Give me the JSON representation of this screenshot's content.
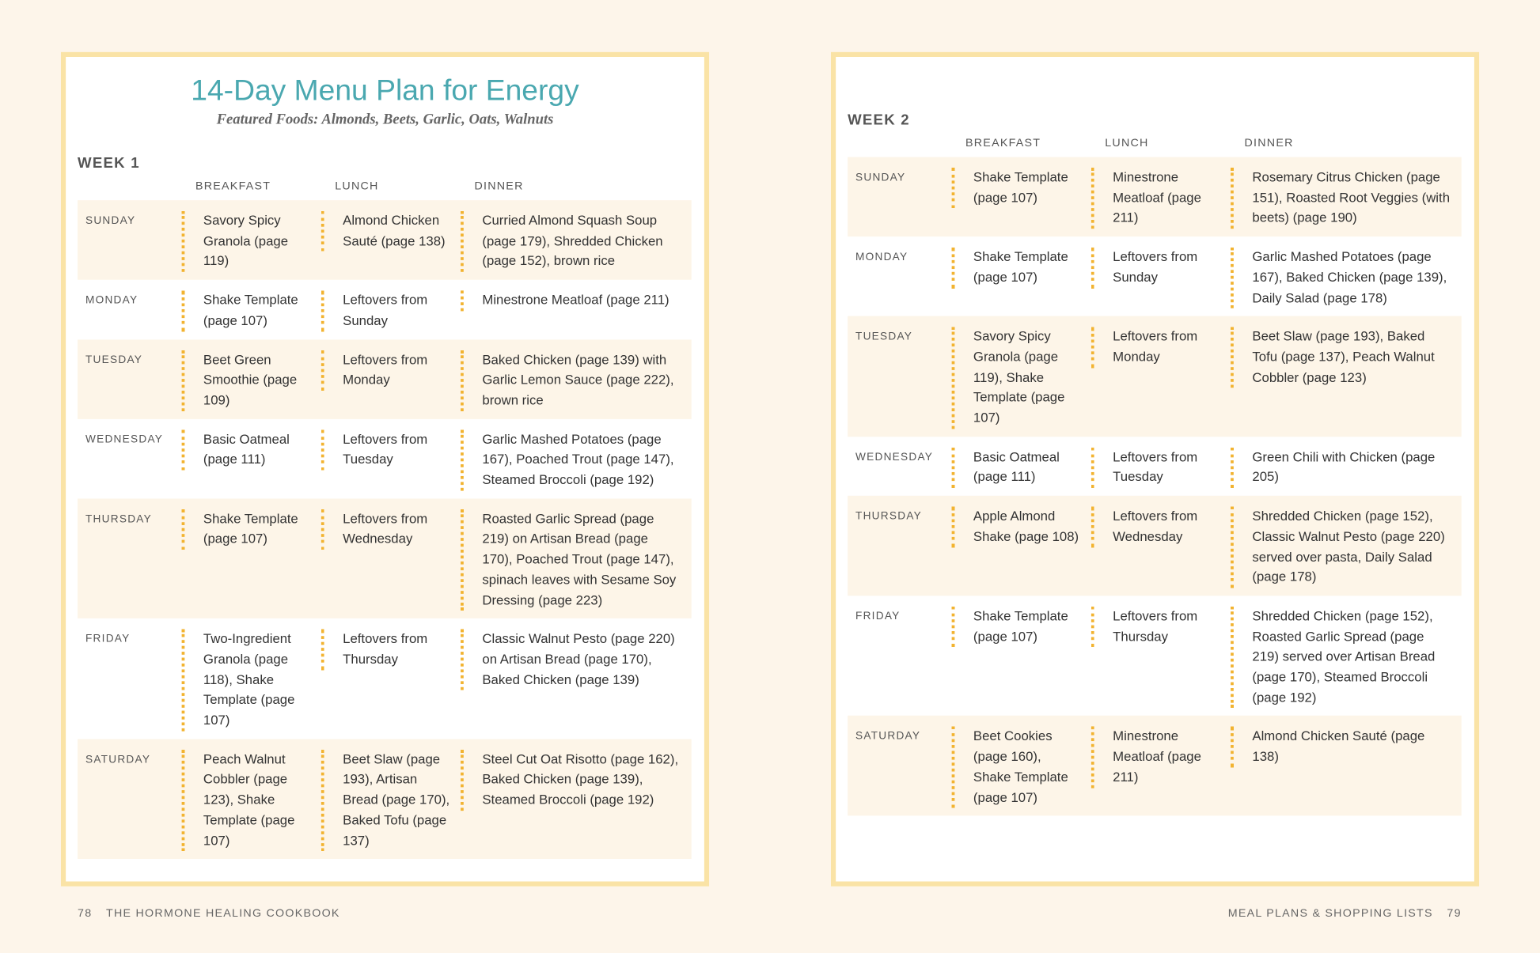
{
  "title": "14-Day Menu Plan for Energy",
  "subtitle": "Featured Foods: Almonds, Beets, Garlic, Oats, Walnuts",
  "weeks": [
    {
      "label": "WEEK 1",
      "columns": [
        "BREAKFAST",
        "LUNCH",
        "DINNER"
      ],
      "rows": [
        {
          "day": "SUNDAY",
          "cells": [
            "Savory Spicy Granola (page 119)",
            "Almond Chicken Sauté (page 138)",
            "Curried Almond Squash Soup (page 179), Shredded Chicken (page 152), brown rice"
          ]
        },
        {
          "day": "MONDAY",
          "cells": [
            "Shake Template (page 107)",
            "Leftovers from Sunday",
            "Minestrone Meatloaf (page 211)"
          ]
        },
        {
          "day": "TUESDAY",
          "cells": [
            "Beet Green Smoothie (page 109)",
            "Leftovers from Monday",
            "Baked Chicken (page 139) with Garlic Lemon Sauce (page 222), brown rice"
          ]
        },
        {
          "day": "WEDNESDAY",
          "cells": [
            "Basic Oatmeal (page 111)",
            "Leftovers from Tuesday",
            "Garlic Mashed Potatoes (page 167), Poached Trout (page 147), Steamed Broccoli (page 192)"
          ]
        },
        {
          "day": "THURSDAY",
          "cells": [
            "Shake Template (page 107)",
            "Leftovers from Wednesday",
            "Roasted Garlic Spread (page 219) on Artisan Bread (page 170), Poached Trout (page 147), spinach leaves with Sesame Soy Dressing (page 223)"
          ]
        },
        {
          "day": "FRIDAY",
          "cells": [
            "Two-Ingredient Granola (page 118), Shake Template (page 107)",
            "Leftovers from Thursday",
            "Classic Walnut Pesto (page 220) on Artisan Bread (page 170), Baked Chicken (page 139)"
          ]
        },
        {
          "day": "SATURDAY",
          "cells": [
            "Peach Walnut Cobbler (page 123), Shake Template (page 107)",
            "Beet Slaw (page 193), Artisan Bread (page 170), Baked Tofu (page 137)",
            "Steel Cut Oat Risotto (page 162), Baked Chicken (page 139), Steamed Broccoli (page 192)"
          ]
        }
      ]
    },
    {
      "label": "WEEK 2",
      "columns": [
        "BREAKFAST",
        "LUNCH",
        "DINNER"
      ],
      "rows": [
        {
          "day": "SUNDAY",
          "cells": [
            "Shake Template (page 107)",
            "Minestrone Meatloaf (page 211)",
            "Rosemary Citrus Chicken (page 151), Roasted Root Veggies (with beets) (page 190)"
          ]
        },
        {
          "day": "MONDAY",
          "cells": [
            "Shake Template (page 107)",
            "Leftovers from Sunday",
            "Garlic Mashed Potatoes (page 167), Baked Chicken (page 139), Daily Salad (page 178)"
          ]
        },
        {
          "day": "TUESDAY",
          "cells": [
            "Savory Spicy Granola (page 119), Shake Template (page 107)",
            "Leftovers from Monday",
            "Beet Slaw (page 193), Baked Tofu (page 137), Peach Walnut Cobbler (page 123)"
          ]
        },
        {
          "day": "WEDNESDAY",
          "cells": [
            "Basic Oatmeal (page 111)",
            "Leftovers from Tuesday",
            "Green Chili with Chicken (page 205)"
          ]
        },
        {
          "day": "THURSDAY",
          "cells": [
            "Apple Almond Shake (page 108)",
            "Leftovers from Wednesday",
            "Shredded Chicken (page 152), Classic Walnut Pesto (page 220) served over pasta, Daily Salad (page 178)"
          ]
        },
        {
          "day": "FRIDAY",
          "cells": [
            "Shake Template (page 107)",
            "Leftovers from Thursday",
            "Shredded Chicken (page 152), Roasted Garlic Spread (page 219) served over Artisan Bread (page 170), Steamed Broccoli (page 192)"
          ]
        },
        {
          "day": "SATURDAY",
          "cells": [
            "Beet Cookies (page 160), Shake Template (page 107)",
            "Minestrone Meatloaf (page 211)",
            "Almond Chicken Sauté (page 138)"
          ]
        }
      ]
    }
  ],
  "footer": {
    "left_page": "78",
    "left_text": "THE HORMONE HEALING COOKBOOK",
    "right_text": "MEAL PLANS & SHOPPING LISTS",
    "right_page": "79"
  }
}
